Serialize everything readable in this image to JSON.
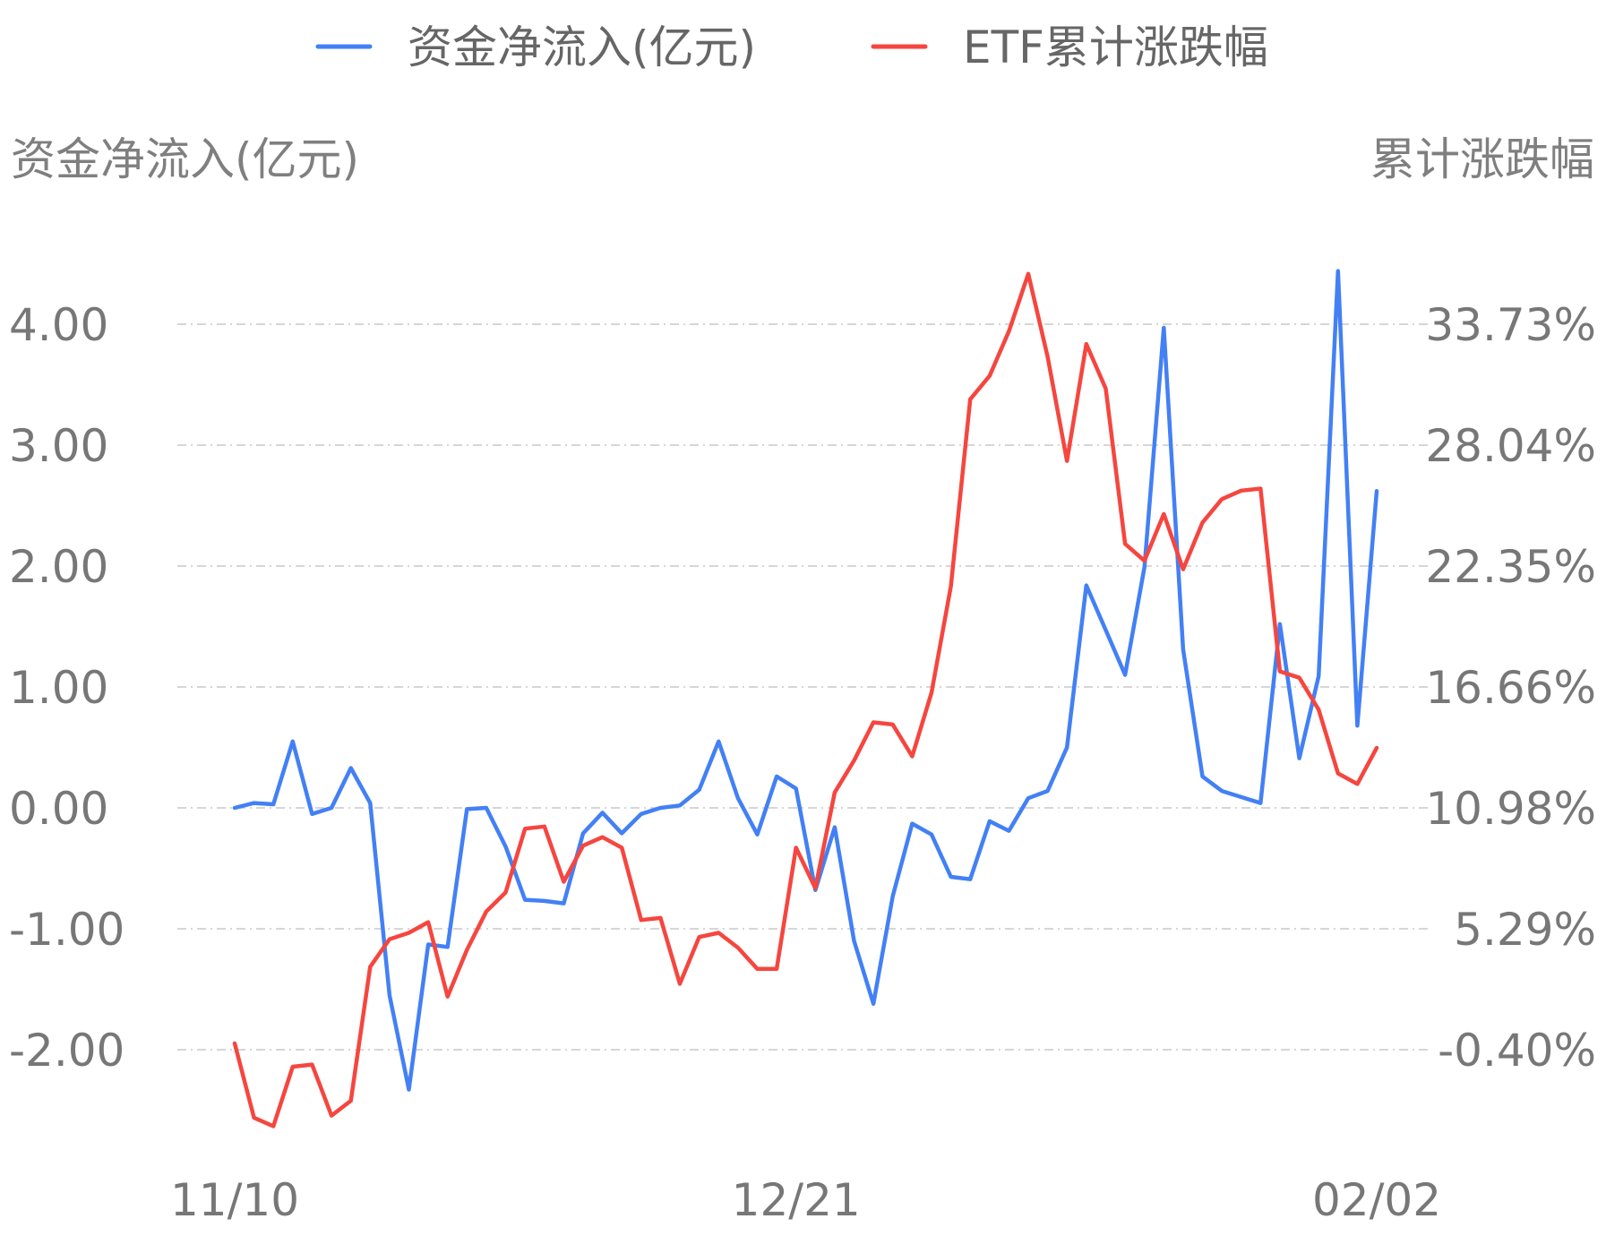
{
  "chart_data": {
    "type": "line",
    "legend": {
      "placement": "top-center"
    },
    "grid": true,
    "y_left": {
      "label": "资金净流入(亿元)",
      "ticks": [
        "4.00",
        "3.00",
        "2.00",
        "1.00",
        "0.00",
        "-1.00",
        "-2.00"
      ],
      "tick_values": [
        4,
        3,
        2,
        1,
        0,
        -1,
        -2
      ]
    },
    "y_right": {
      "label": "累计涨跌幅",
      "ticks": [
        "33.73%",
        "28.04%",
        "22.35%",
        "16.66%",
        "10.98%",
        "5.29%",
        "-0.40%"
      ],
      "tick_values": [
        33.73,
        28.04,
        22.35,
        16.66,
        10.98,
        5.29,
        -0.4
      ]
    },
    "x_ticks": [
      {
        "label": "11/10",
        "index": 0
      },
      {
        "label": "12/21",
        "index": 29
      },
      {
        "label": "02/02",
        "index": 59
      }
    ],
    "series": [
      {
        "name": "资金净流入(亿元)",
        "axis": "left",
        "color": "#4380f5",
        "values": [
          0.0,
          0.04,
          0.03,
          0.55,
          -0.05,
          0.0,
          0.33,
          0.04,
          -1.55,
          -2.33,
          -1.13,
          -1.15,
          -0.01,
          0.0,
          -0.32,
          -0.76,
          -0.77,
          -0.79,
          -0.21,
          -0.04,
          -0.21,
          -0.05,
          0.0,
          0.02,
          0.15,
          0.55,
          0.08,
          -0.22,
          0.26,
          0.16,
          -0.68,
          -0.16,
          -1.1,
          -1.62,
          -0.73,
          -0.13,
          -0.22,
          -0.57,
          -0.59,
          -0.11,
          -0.19,
          0.08,
          0.14,
          0.5,
          1.84,
          1.47,
          1.1,
          1.99,
          3.97,
          1.31,
          0.26,
          0.14,
          0.09,
          0.04,
          1.52,
          0.41,
          1.09,
          4.44,
          0.68,
          2.62
        ]
      },
      {
        "name": "ETF累计涨跌幅",
        "axis": "right",
        "color": "#f5463f",
        "values": [
          -0.1,
          -3.6,
          -4.0,
          -1.2,
          -1.1,
          -3.5,
          -2.8,
          3.5,
          4.8,
          5.1,
          5.6,
          2.1,
          4.3,
          6.1,
          7.0,
          10.0,
          10.1,
          7.5,
          9.2,
          9.6,
          9.1,
          5.7,
          5.8,
          2.7,
          4.9,
          5.1,
          4.4,
          3.4,
          3.4,
          9.1,
          7.2,
          11.7,
          13.2,
          15.0,
          14.9,
          13.4,
          16.4,
          21.4,
          30.2,
          31.3,
          33.4,
          36.1,
          32.2,
          27.3,
          32.8,
          30.7,
          23.4,
          22.6,
          24.8,
          22.2,
          24.4,
          25.5,
          25.9,
          26.0,
          17.4,
          17.1,
          15.6,
          12.6,
          12.1,
          13.8
        ]
      }
    ]
  }
}
